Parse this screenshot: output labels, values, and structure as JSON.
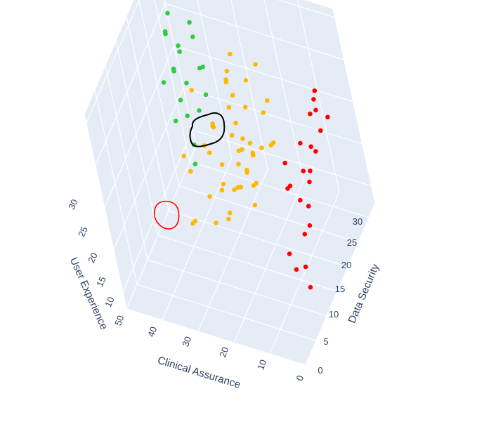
{
  "chart_data": {
    "type": "scatter",
    "dimensions": "3d",
    "axes": {
      "x": {
        "label": "Clinical Assurance",
        "ticks": [
          0,
          10,
          20,
          30,
          40,
          50
        ],
        "range": [
          0,
          50
        ]
      },
      "y": {
        "label": "Data Security",
        "ticks": [
          0,
          5,
          10,
          15,
          20,
          25,
          30
        ],
        "range": [
          0,
          33
        ]
      },
      "z": {
        "label": "User Experience",
        "ticks": [
          10,
          15,
          20,
          25,
          30
        ],
        "range": [
          8,
          31
        ]
      }
    },
    "grid": true,
    "legend": "none",
    "series": [
      {
        "color": "#2ecc40",
        "points": [
          [
            47,
            30,
            26
          ],
          [
            49,
            31,
            28
          ],
          [
            44,
            28,
            23
          ],
          [
            46,
            27,
            21
          ],
          [
            45,
            26,
            22
          ],
          [
            48,
            29,
            24
          ],
          [
            43,
            27,
            20
          ],
          [
            44,
            25,
            19
          ],
          [
            42,
            24,
            18
          ],
          [
            45,
            29,
            23
          ],
          [
            41,
            27,
            17
          ],
          [
            40,
            22,
            16
          ],
          [
            43,
            21,
            19
          ],
          [
            46,
            23,
            22
          ],
          [
            39,
            20,
            15
          ],
          [
            42,
            31,
            25
          ],
          [
            38,
            28,
            22
          ],
          [
            40,
            29,
            21
          ],
          [
            41,
            30,
            24
          ],
          [
            37,
            26,
            20
          ],
          [
            36,
            25,
            17
          ],
          [
            47,
            28,
            25
          ],
          [
            49,
            29,
            29
          ]
        ]
      },
      {
        "color": "#ffb800",
        "points": [
          [
            30,
            25,
            20
          ],
          [
            28,
            24,
            19
          ],
          [
            26,
            23,
            18
          ],
          [
            27,
            22,
            17
          ],
          [
            25,
            21,
            18
          ],
          [
            29,
            26,
            21
          ],
          [
            24,
            20,
            16
          ],
          [
            23,
            19,
            17
          ],
          [
            31,
            27,
            22
          ],
          [
            32,
            28,
            21
          ],
          [
            22,
            20,
            15
          ],
          [
            21,
            18,
            16
          ],
          [
            33,
            22,
            19
          ],
          [
            26,
            26,
            20
          ],
          [
            20,
            16,
            15
          ],
          [
            35,
            24,
            18
          ],
          [
            28,
            19,
            14
          ],
          [
            30,
            18,
            15
          ],
          [
            24,
            17,
            16
          ],
          [
            27,
            21,
            16
          ],
          [
            29,
            23,
            18
          ],
          [
            25,
            24,
            17
          ],
          [
            31,
            20,
            16
          ],
          [
            23,
            22,
            17
          ],
          [
            22,
            21,
            18
          ],
          [
            34,
            20,
            17
          ],
          [
            36,
            21,
            17
          ],
          [
            19,
            21,
            19
          ],
          [
            30,
            29,
            24
          ],
          [
            26,
            28,
            22
          ],
          [
            33,
            30,
            21
          ],
          [
            38,
            17,
            16
          ],
          [
            40,
            18,
            17
          ],
          [
            32,
            15,
            15
          ],
          [
            21,
            26,
            20
          ],
          [
            18,
            24,
            18
          ],
          [
            17,
            22,
            19
          ],
          [
            28,
            16,
            13
          ],
          [
            37,
            14,
            12
          ],
          [
            29,
            12,
            14
          ],
          [
            36,
            12,
            13
          ],
          [
            27,
            14,
            17
          ],
          [
            25,
            12,
            15
          ],
          [
            22,
            14,
            18
          ],
          [
            41,
            26,
            20
          ],
          [
            24,
            30,
            23
          ],
          [
            20,
            27,
            21
          ]
        ]
      },
      {
        "color": "#ff0000",
        "points": [
          [
            8,
            30,
            22
          ],
          [
            7,
            28,
            21
          ],
          [
            6,
            27,
            23
          ],
          [
            5,
            26,
            20
          ],
          [
            7,
            24,
            19
          ],
          [
            4,
            22,
            20
          ],
          [
            6,
            21,
            18
          ],
          [
            5,
            19,
            18
          ],
          [
            8,
            18,
            16
          ],
          [
            4,
            16,
            17
          ],
          [
            3,
            14,
            16
          ],
          [
            6,
            15,
            14
          ],
          [
            9,
            12,
            13
          ],
          [
            7,
            11,
            12
          ],
          [
            10,
            24,
            19
          ],
          [
            9,
            22,
            17
          ],
          [
            12,
            20,
            16
          ],
          [
            11,
            18,
            17
          ],
          [
            13,
            21,
            18
          ],
          [
            3,
            10,
            11
          ],
          [
            5,
            12,
            12
          ],
          [
            8,
            27,
            21
          ],
          [
            2,
            26,
            22
          ]
        ]
      }
    ]
  }
}
